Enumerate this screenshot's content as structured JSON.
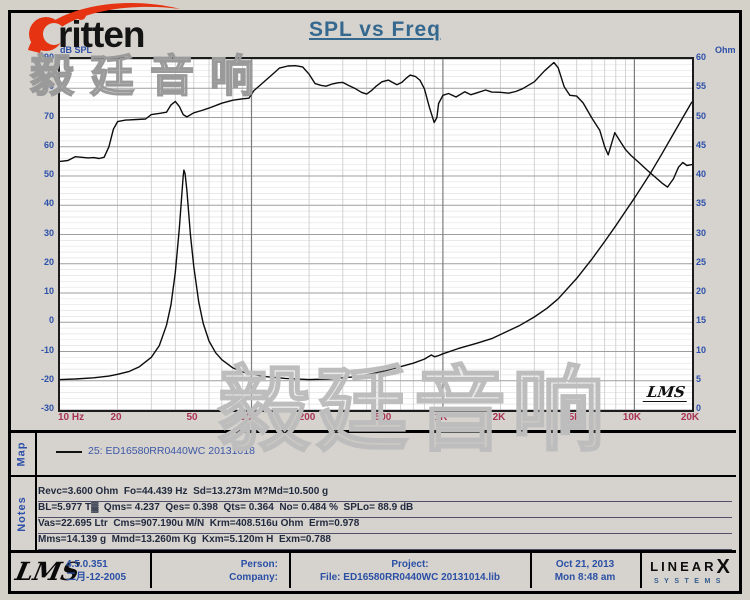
{
  "colors": {
    "background": "#d6d3ce",
    "title_blue": "#35688f",
    "axis_label_blue": "#2c4fa8",
    "freq_label_red": "#a93355",
    "curve_black": "#0d0d0d",
    "brand_red": "#e63312",
    "watermark_gray": "#9a9a9a",
    "border_black": "#000000"
  },
  "brand": {
    "logo_text": "ritten",
    "watermark_text": "毅廷音响"
  },
  "header": {
    "title": "SPL vs Freq"
  },
  "chart_annotations": {
    "ylabel_left": "dB SPL",
    "ylabel_right": "Ohm",
    "lms_inset": "LMS"
  },
  "map_panel": {
    "label": "Map",
    "legend": "25: ED16580RR0440WC  20131018"
  },
  "notes_panel": {
    "label": "Notes",
    "lines": [
      "Revc=3.600 Ohm  Fo=44.439 Hz  Sd=13.273m M?Md=10.500 g",
      "BL=5.977 T▓  Qms= 4.237  Qes= 0.398  Qts= 0.364  No= 0.484 %  SPLo= 88.9 dB",
      "Vas=22.695 Ltr  Cms=907.190u M/N  Krm=408.516u Ohm  Erm=0.978",
      "Mms=14.139 g  Mmd=13.260m Kg  Kxm=5.120m H  Exm=0.788"
    ]
  },
  "status_bar": {
    "lms_logo": "LMS",
    "version": "4.5.0.351",
    "version_date": "二月-12-2005",
    "person_label": "Person:",
    "company_label": "Company:",
    "project_label": "Project:",
    "file_label": "File: ED16580RR0440WC 20131014.lib",
    "date": "Oct 21, 2013",
    "time": "Mon  8:48 am",
    "linearx_line1": "LINEAR",
    "linearx_x": "X",
    "linearx_line2": "SYSTEMS"
  },
  "chart_data": {
    "type": "line",
    "title": "SPL vs Freq",
    "grid": true,
    "x_axis": {
      "label": "Hz",
      "scale": "log",
      "min": 10,
      "max": 20000,
      "ticks": [
        {
          "f": 10,
          "label": "10 Hz"
        },
        {
          "f": 20,
          "label": "20"
        },
        {
          "f": 50,
          "label": "50"
        },
        {
          "f": 100,
          "label": "100"
        },
        {
          "f": 200,
          "label": "200"
        },
        {
          "f": 500,
          "label": "500"
        },
        {
          "f": 1000,
          "label": "1K"
        },
        {
          "f": 2000,
          "label": "2K"
        },
        {
          "f": 5000,
          "label": "5K"
        },
        {
          "f": 10000,
          "label": "10K"
        },
        {
          "f": 20000,
          "label": "20K"
        }
      ]
    },
    "y_axis_left": {
      "label": "dB SPL",
      "min": -30,
      "max": 90,
      "tick_step": 10
    },
    "y_axis_right": {
      "label": "Ohm",
      "min": 0,
      "max": 60,
      "tick_step": 5
    },
    "legend": [
      "25: ED16580RR0440WC  20131018"
    ],
    "series": [
      {
        "name": "SPL (dB SPL, left axis)",
        "axis": "left",
        "unit": "dB",
        "points": [
          [
            10,
            55
          ],
          [
            11,
            55.3
          ],
          [
            12,
            56.6
          ],
          [
            13,
            56.4
          ],
          [
            14,
            56.2
          ],
          [
            15,
            56.3
          ],
          [
            16,
            56.0
          ],
          [
            17,
            56.4
          ],
          [
            18,
            60
          ],
          [
            19,
            66
          ],
          [
            20,
            68.6
          ],
          [
            22,
            69.1
          ],
          [
            25,
            69.3
          ],
          [
            28,
            69.5
          ],
          [
            30,
            71.0
          ],
          [
            33,
            71.4
          ],
          [
            36,
            71.8
          ],
          [
            38,
            74.3
          ],
          [
            40,
            75.5
          ],
          [
            42,
            73.8
          ],
          [
            44,
            71.0
          ],
          [
            46,
            70.2
          ],
          [
            50,
            71.6
          ],
          [
            55,
            72.4
          ],
          [
            60,
            73.2
          ],
          [
            70,
            74.9
          ],
          [
            80,
            75.9
          ],
          [
            90,
            76.4
          ],
          [
            97,
            76.6
          ],
          [
            103,
            79.2
          ],
          [
            110,
            80.8
          ],
          [
            120,
            83.0
          ],
          [
            130,
            85.0
          ],
          [
            140,
            86.9
          ],
          [
            155,
            87.6
          ],
          [
            170,
            87.7
          ],
          [
            185,
            87.3
          ],
          [
            200,
            84.8
          ],
          [
            215,
            81.6
          ],
          [
            230,
            81.0
          ],
          [
            245,
            80.7
          ],
          [
            265,
            81.5
          ],
          [
            285,
            81.9
          ],
          [
            300,
            82.0
          ],
          [
            320,
            81.0
          ],
          [
            350,
            79.8
          ],
          [
            375,
            78.6
          ],
          [
            400,
            78.0
          ],
          [
            425,
            79.3
          ],
          [
            450,
            80.8
          ],
          [
            480,
            82.2
          ],
          [
            520,
            82.8
          ],
          [
            550,
            81.9
          ],
          [
            575,
            81.2
          ],
          [
            610,
            82.0
          ],
          [
            640,
            83.3
          ],
          [
            675,
            84.5
          ],
          [
            720,
            84.0
          ],
          [
            760,
            82.7
          ],
          [
            800,
            79.8
          ],
          [
            850,
            73.5
          ],
          [
            900,
            68.3
          ],
          [
            930,
            70.0
          ],
          [
            950,
            74.8
          ],
          [
            1000,
            77.6
          ],
          [
            1070,
            78.2
          ],
          [
            1170,
            77.0
          ],
          [
            1300,
            78.8
          ],
          [
            1400,
            77.8
          ],
          [
            1500,
            78.4
          ],
          [
            1670,
            79.4
          ],
          [
            1800,
            78.7
          ],
          [
            2000,
            78.6
          ],
          [
            2200,
            78.3
          ],
          [
            2400,
            78.9
          ],
          [
            2600,
            79.8
          ],
          [
            3000,
            82.2
          ],
          [
            3400,
            86.0
          ],
          [
            3800,
            88.8
          ],
          [
            4000,
            87.0
          ],
          [
            4300,
            80.5
          ],
          [
            4600,
            77.6
          ],
          [
            5000,
            77.3
          ],
          [
            5400,
            75.0
          ],
          [
            6000,
            69.8
          ],
          [
            6600,
            65.6
          ],
          [
            7000,
            60.0
          ],
          [
            7300,
            57.2
          ],
          [
            7900,
            64.8
          ],
          [
            8400,
            62.0
          ],
          [
            9000,
            59.0
          ],
          [
            9600,
            57.0
          ],
          [
            10500,
            54.8
          ],
          [
            11700,
            51.9
          ],
          [
            13000,
            49.3
          ],
          [
            14000,
            47.5
          ],
          [
            14900,
            46.2
          ],
          [
            16000,
            49.0
          ],
          [
            17000,
            53.0
          ],
          [
            17900,
            54.6
          ],
          [
            18800,
            53.6
          ],
          [
            20000,
            53.9
          ]
        ]
      },
      {
        "name": "Impedance (Ohm, right axis)",
        "axis": "right",
        "unit": "Ohm",
        "points": [
          [
            10,
            5.2
          ],
          [
            12,
            5.3
          ],
          [
            15,
            5.5
          ],
          [
            18,
            5.8
          ],
          [
            20,
            6.1
          ],
          [
            23,
            6.6
          ],
          [
            26,
            7.4
          ],
          [
            30,
            9.0
          ],
          [
            33,
            11.0
          ],
          [
            36,
            14.5
          ],
          [
            38,
            18.0
          ],
          [
            40,
            23.5
          ],
          [
            42,
            31.0
          ],
          [
            44,
            40.0
          ],
          [
            44.4,
            41.0
          ],
          [
            45,
            40.4
          ],
          [
            46,
            37.5
          ],
          [
            48,
            30.0
          ],
          [
            50,
            24.5
          ],
          [
            53,
            18.5
          ],
          [
            56,
            14.8
          ],
          [
            60,
            11.8
          ],
          [
            65,
            9.8
          ],
          [
            70,
            8.6
          ],
          [
            80,
            7.2
          ],
          [
            90,
            6.5
          ],
          [
            100,
            6.1
          ],
          [
            120,
            5.7
          ],
          [
            150,
            5.4
          ],
          [
            200,
            5.2
          ],
          [
            250,
            5.3
          ],
          [
            300,
            5.5
          ],
          [
            350,
            5.7
          ],
          [
            400,
            6.0
          ],
          [
            500,
            6.7
          ],
          [
            600,
            7.4
          ],
          [
            700,
            8.0
          ],
          [
            800,
            8.7
          ],
          [
            870,
            9.4
          ],
          [
            905,
            9.1
          ],
          [
            950,
            9.3
          ],
          [
            1000,
            9.6
          ],
          [
            1200,
            10.5
          ],
          [
            1500,
            11.4
          ],
          [
            1800,
            12.2
          ],
          [
            2000,
            12.9
          ],
          [
            2500,
            14.4
          ],
          [
            3000,
            15.9
          ],
          [
            3500,
            17.4
          ],
          [
            4000,
            19.0
          ],
          [
            5000,
            22.5
          ],
          [
            6000,
            25.8
          ],
          [
            7000,
            28.8
          ],
          [
            8000,
            31.5
          ],
          [
            9000,
            34.0
          ],
          [
            10000,
            36.2
          ],
          [
            12000,
            40.2
          ],
          [
            14000,
            43.9
          ],
          [
            16000,
            47.2
          ],
          [
            18000,
            50.1
          ],
          [
            20000,
            52.7
          ]
        ]
      }
    ]
  }
}
